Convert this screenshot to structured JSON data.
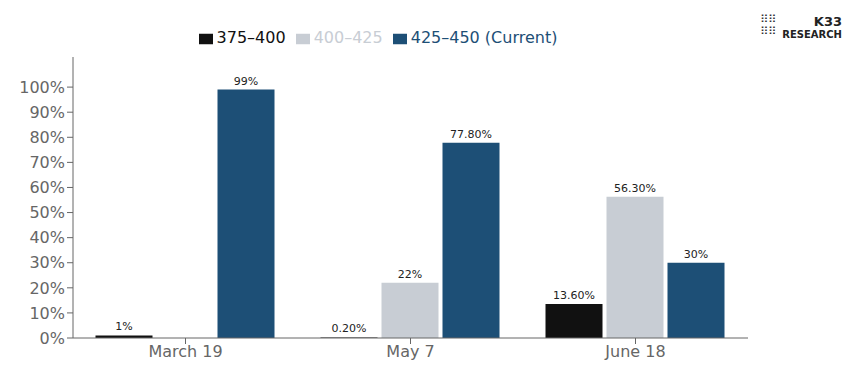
{
  "chart_data": {
    "type": "bar",
    "categories": [
      "March 19",
      "May 7",
      "June 18"
    ],
    "series": [
      {
        "name": "375–400",
        "color": "#111111",
        "values": [
          1.0,
          0.2,
          13.6
        ],
        "value_labels": [
          "1%",
          "0.20%",
          "13.60%"
        ]
      },
      {
        "name": "400–425",
        "color": "#c8cdd4",
        "values": [
          0.0,
          22.0,
          56.3
        ],
        "value_labels": [
          null,
          "22%",
          "56.30%"
        ]
      },
      {
        "name": "425–450 (Current)",
        "color": "#1d4f76",
        "values": [
          99.0,
          77.8,
          30.0
        ],
        "value_labels": [
          "99%",
          "77.80%",
          "30%"
        ]
      }
    ],
    "ylim": [
      0,
      112
    ],
    "yticks": [
      {
        "value": 0,
        "label": "0%"
      },
      {
        "value": 10,
        "label": "10%"
      },
      {
        "value": 20,
        "label": "20%"
      },
      {
        "value": 30,
        "label": "30%"
      },
      {
        "value": 40,
        "label": "40%"
      },
      {
        "value": 50,
        "label": "50%"
      },
      {
        "value": 60,
        "label": "60%"
      },
      {
        "value": 70,
        "label": "70%"
      },
      {
        "value": 80,
        "label": "80%"
      },
      {
        "value": 90,
        "label": "90%"
      },
      {
        "value": 100,
        "label": "100%"
      }
    ],
    "grid": false,
    "legend": "top",
    "data_labels": true,
    "annotations": [
      "K33",
      "RESEARCH",
      "⠿⠿\n⠿⠿"
    ]
  }
}
